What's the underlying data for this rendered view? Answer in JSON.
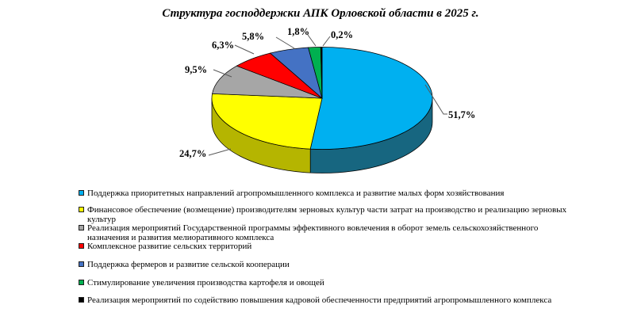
{
  "title": "Структура господдержки АПК Орловской области в 2025 г.",
  "chart_data": {
    "type": "pie",
    "three_d": true,
    "title": "Структура господдержки АПК Орловской области в 2025 г.",
    "unit": "%",
    "start_angle_deg": 0,
    "direction": "clockwise",
    "legend_position": "bottom-left",
    "slices": [
      {
        "name": "Поддержка приоритетных направлений агропромышленного комплекса и развитие малых форм хозяйствования",
        "value": 51.7,
        "label": "51,7%",
        "color": "#00B0F0",
        "side_color": "#176680"
      },
      {
        "name": "Финансовое обеспечение (возмещение) производителям зерновых культур части затрат на производство и реализацию зерновых культур",
        "value": 24.7,
        "label": "24,7%",
        "color": "#FFFF00",
        "side_color": "#B5B500"
      },
      {
        "name": "Реализация мероприятий Государственной программы эффективного вовлечения в оборот земель сельскохозяйственного назначения и развития мелиоративного комплекса",
        "value": 9.5,
        "label": "9,5%",
        "color": "#A6A6A6",
        "side_color": "#7F7F7F"
      },
      {
        "name": "Комплексное развитие сельских территорий",
        "value": 6.3,
        "label": "6,3%",
        "color": "#FF0000",
        "side_color": "#B30000"
      },
      {
        "name": "Поддержка фермеров и развитие сельской кооперации",
        "value": 5.8,
        "label": "5,8%",
        "color": "#4472C4",
        "side_color": "#2F528F"
      },
      {
        "name": "Стимулирование увеличения производства картофеля и овощей",
        "value": 1.8,
        "label": "1,8%",
        "color": "#00B050",
        "side_color": "#007637"
      },
      {
        "name": "Реализация мероприятий по содействию повышения кадровой обеспеченности предприятий агропромышленного комплекса",
        "value": 0.2,
        "label": "0,2%",
        "color": "#000000",
        "side_color": "#000000"
      }
    ]
  }
}
